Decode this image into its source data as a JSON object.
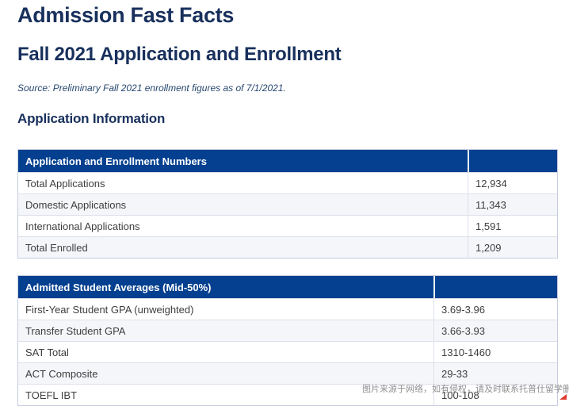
{
  "page": {
    "title": "Admission Fast Facts",
    "subtitle": "Fall 2021 Application and Enrollment",
    "source_note": "Source: Preliminary Fall 2021 enrollment figures as of 7/1/2021.",
    "section_heading": "Application Information"
  },
  "tables": [
    {
      "header": "Application and Enrollment Numbers",
      "rows": [
        {
          "label": "Total Applications",
          "value": "12,934"
        },
        {
          "label": "Domestic Applications",
          "value": "11,343"
        },
        {
          "label": "International Applications",
          "value": "1,591"
        },
        {
          "label": "Total Enrolled",
          "value": "1,209"
        }
      ]
    },
    {
      "header": "Admitted Student Averages (Mid-50%)",
      "rows": [
        {
          "label": "First-Year Student GPA (unweighted)",
          "value": "3.69-3.96"
        },
        {
          "label": "Transfer Student GPA",
          "value": "3.66-3.93"
        },
        {
          "label": "SAT Total",
          "value": "1310-1460"
        },
        {
          "label": "ACT Composite",
          "value": "29-33"
        },
        {
          "label": "TOEFL IBT",
          "value": "100-108"
        }
      ]
    }
  ],
  "watermark": "图片来源于网络，如有侵权，请及时联系托普仕留学删除",
  "colors": {
    "heading_navy": "#18305c",
    "table_header_bg": "#04408f",
    "table_border": "#c4cde0",
    "row_alt_bg": "#f5f6f9",
    "cell_text": "#3e3e3e",
    "watermark_text": "#8f8f8f",
    "corner_mark_red": "#e03a2f"
  }
}
